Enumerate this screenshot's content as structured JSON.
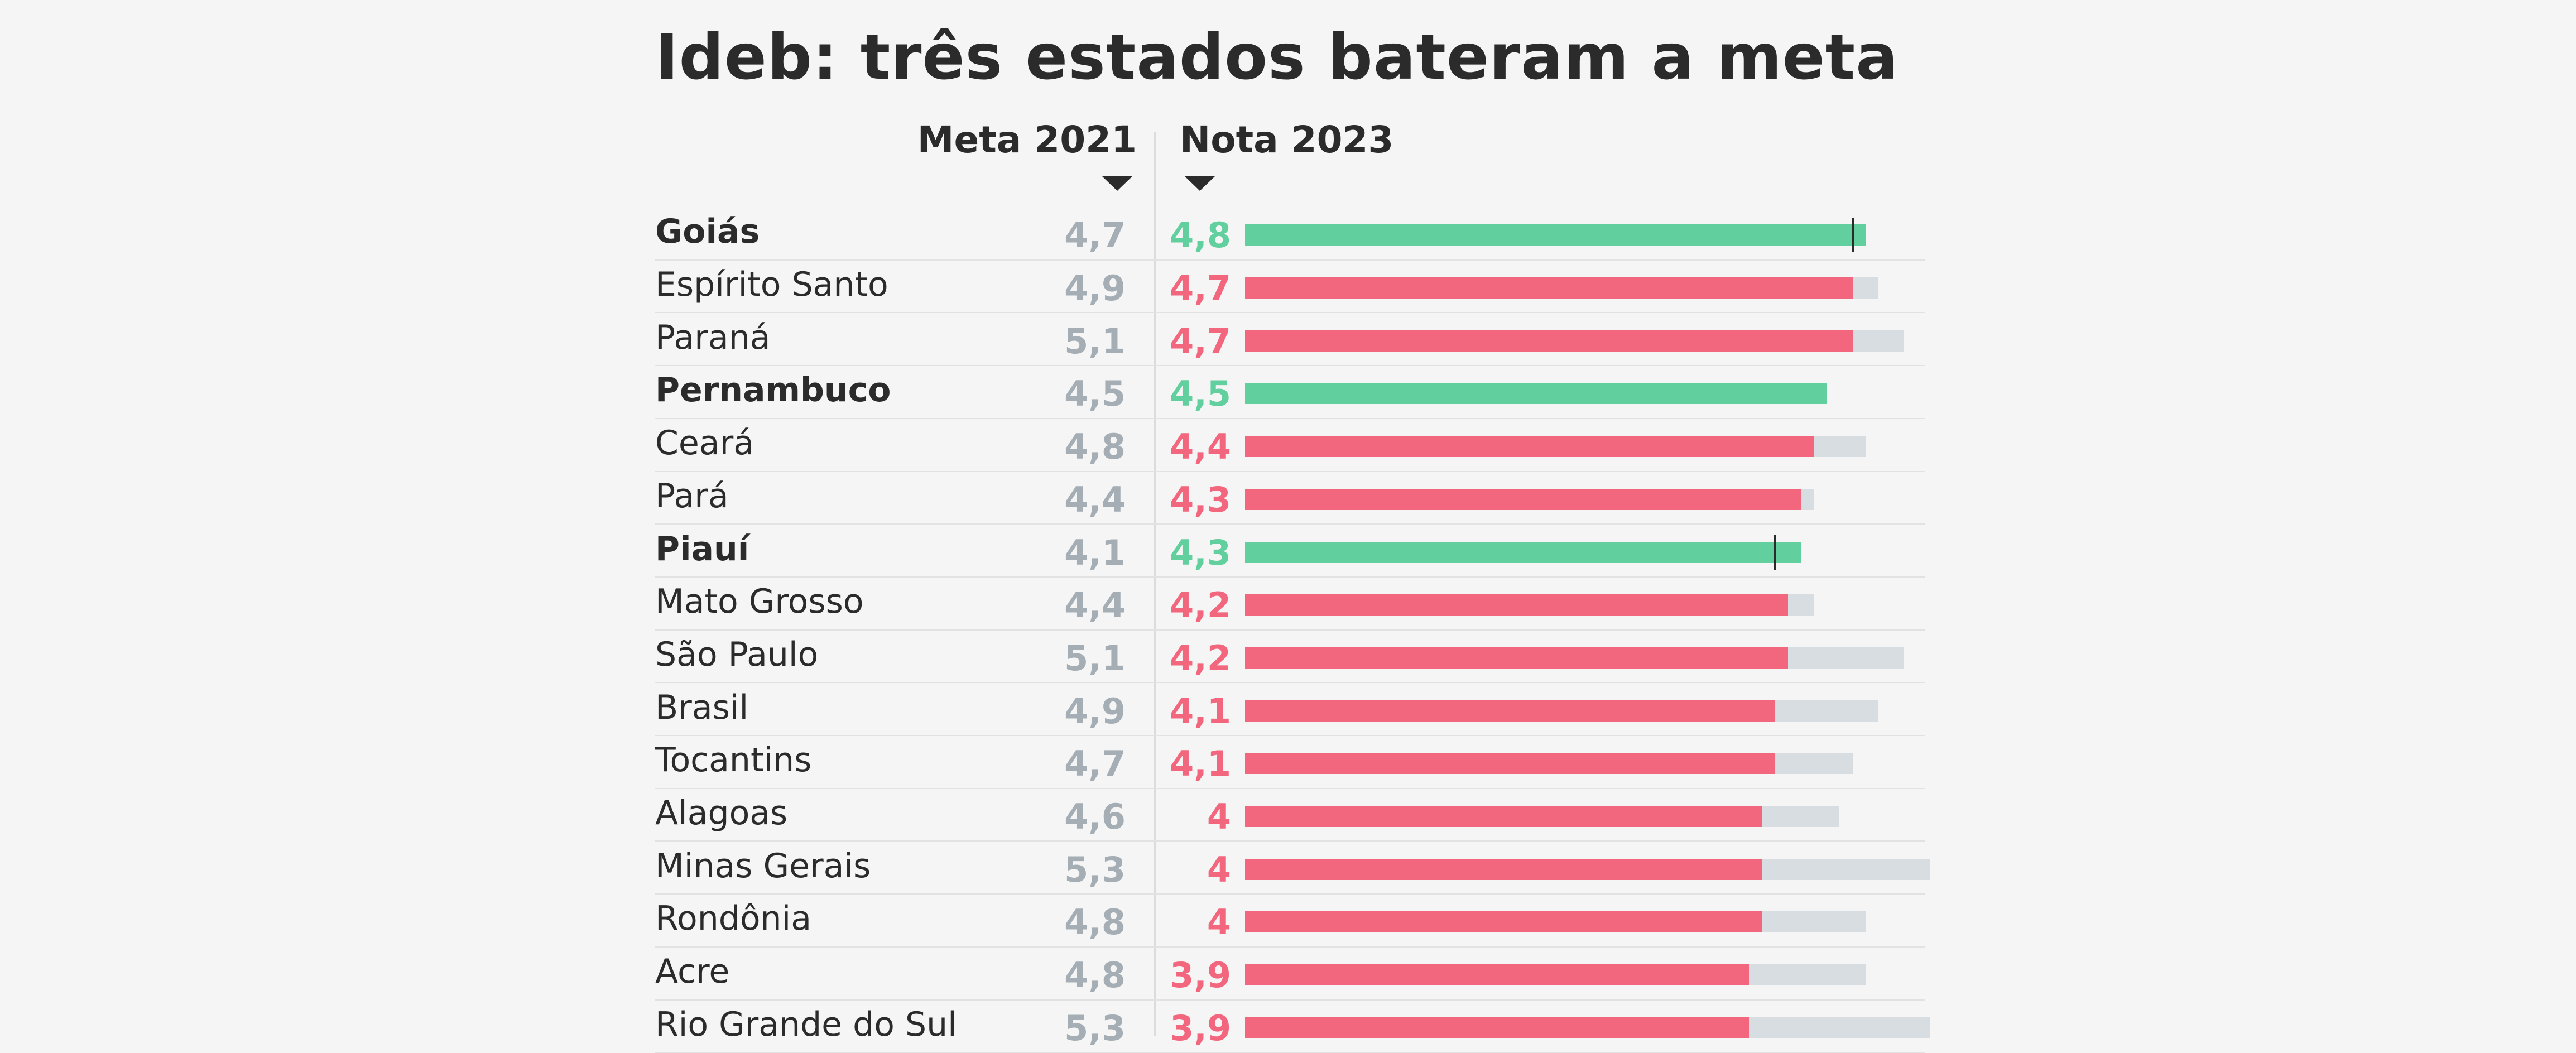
{
  "title": "Ideb: três estados bateram a meta",
  "colors": {
    "met": "#62cf9f",
    "missed": "#f2677e",
    "target_bar": "#d8dde1",
    "meta_text": "#a5aeb4"
  },
  "chart_data": {
    "type": "bar",
    "title": "Ideb: três estados bateram a meta",
    "headers": {
      "meta": "Meta 2021",
      "nota": "Nota 2023"
    },
    "xlim": [
      0,
      5.3
    ],
    "rows": [
      {
        "label": "Goiás",
        "meta": "4,7",
        "nota": "4,8",
        "meta_value": 4.7,
        "nota_value": 4.8,
        "met": true
      },
      {
        "label": "Espírito Santo",
        "meta": "4,9",
        "nota": "4,7",
        "meta_value": 4.9,
        "nota_value": 4.7,
        "met": false
      },
      {
        "label": "Paraná",
        "meta": "5,1",
        "nota": "4,7",
        "meta_value": 5.1,
        "nota_value": 4.7,
        "met": false
      },
      {
        "label": "Pernambuco",
        "meta": "4,5",
        "nota": "4,5",
        "meta_value": 4.5,
        "nota_value": 4.5,
        "met": true
      },
      {
        "label": "Ceará",
        "meta": "4,8",
        "nota": "4,4",
        "meta_value": 4.8,
        "nota_value": 4.4,
        "met": false
      },
      {
        "label": "Pará",
        "meta": "4,4",
        "nota": "4,3",
        "meta_value": 4.4,
        "nota_value": 4.3,
        "met": false
      },
      {
        "label": "Piauí",
        "meta": "4,1",
        "nota": "4,3",
        "meta_value": 4.1,
        "nota_value": 4.3,
        "met": true
      },
      {
        "label": "Mato Grosso",
        "meta": "4,4",
        "nota": "4,2",
        "meta_value": 4.4,
        "nota_value": 4.2,
        "met": false
      },
      {
        "label": "São Paulo",
        "meta": "5,1",
        "nota": "4,2",
        "meta_value": 5.1,
        "nota_value": 4.2,
        "met": false
      },
      {
        "label": "Brasil",
        "meta": "4,9",
        "nota": "4,1",
        "meta_value": 4.9,
        "nota_value": 4.1,
        "met": false
      },
      {
        "label": "Tocantins",
        "meta": "4,7",
        "nota": "4,1",
        "meta_value": 4.7,
        "nota_value": 4.1,
        "met": false
      },
      {
        "label": "Alagoas",
        "meta": "4,6",
        "nota": "4",
        "meta_value": 4.6,
        "nota_value": 4.0,
        "met": false
      },
      {
        "label": "Minas Gerais",
        "meta": "5,3",
        "nota": "4",
        "meta_value": 5.3,
        "nota_value": 4.0,
        "met": false
      },
      {
        "label": "Rondônia",
        "meta": "4,8",
        "nota": "4",
        "meta_value": 4.8,
        "nota_value": 4.0,
        "met": false
      },
      {
        "label": "Acre",
        "meta": "4,8",
        "nota": "3,9",
        "meta_value": 4.8,
        "nota_value": 3.9,
        "met": false
      },
      {
        "label": "Rio Grande do Sul",
        "meta": "5,3",
        "nota": "3,9",
        "meta_value": 5.3,
        "nota_value": 3.9,
        "met": false
      }
    ]
  }
}
